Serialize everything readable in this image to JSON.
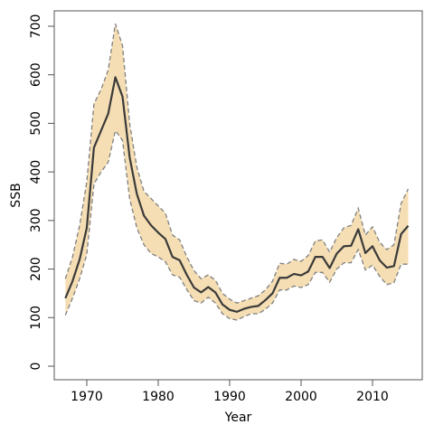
{
  "chart_data": {
    "type": "line",
    "title": "",
    "xlabel": "Year",
    "ylabel": "SSB",
    "xlim": [
      1966,
      2016
    ],
    "ylim": [
      -25,
      725
    ],
    "x_ticks": [
      1970,
      1980,
      1990,
      2000,
      2010
    ],
    "y_ticks": [
      0,
      100,
      200,
      300,
      400,
      500,
      600,
      700
    ],
    "grid": false,
    "legend": "none",
    "colors": {
      "band": "#F5DEB3",
      "line": "#3a3a3a",
      "bound": "#808080",
      "frame": "#555555"
    },
    "x": [
      1967,
      1968,
      1969,
      1970,
      1971,
      1972,
      1973,
      1974,
      1975,
      1976,
      1977,
      1978,
      1979,
      1980,
      1981,
      1982,
      1983,
      1984,
      1985,
      1986,
      1987,
      1988,
      1989,
      1990,
      1991,
      1992,
      1993,
      1994,
      1995,
      1996,
      1997,
      1998,
      1999,
      2000,
      2001,
      2002,
      2003,
      2004,
      2005,
      2006,
      2007,
      2008,
      2009,
      2010,
      2011,
      2012,
      2013,
      2014,
      2015
    ],
    "series": [
      {
        "role": "estimate",
        "values": [
          140,
          175,
          220,
          285,
          450,
          485,
          520,
          595,
          555,
          430,
          355,
          310,
          290,
          275,
          262,
          225,
          218,
          188,
          162,
          152,
          163,
          152,
          127,
          116,
          112,
          118,
          122,
          124,
          136,
          150,
          182,
          182,
          190,
          187,
          195,
          225,
          225,
          202,
          232,
          247,
          248,
          282,
          233,
          247,
          218,
          203,
          206,
          272,
          289
        ]
      },
      {
        "role": "upper",
        "values": [
          180,
          225,
          290,
          380,
          540,
          570,
          610,
          705,
          660,
          500,
          410,
          360,
          345,
          330,
          315,
          270,
          260,
          225,
          197,
          180,
          188,
          177,
          150,
          138,
          130,
          135,
          140,
          145,
          157,
          175,
          212,
          210,
          220,
          216,
          228,
          258,
          260,
          235,
          265,
          285,
          290,
          325,
          270,
          287,
          255,
          240,
          250,
          335,
          365
        ]
      },
      {
        "role": "lower",
        "values": [
          105,
          140,
          180,
          230,
          375,
          400,
          420,
          485,
          465,
          345,
          285,
          250,
          232,
          225,
          215,
          188,
          183,
          158,
          135,
          130,
          142,
          130,
          108,
          98,
          95,
          102,
          108,
          108,
          117,
          130,
          157,
          157,
          165,
          162,
          168,
          193,
          193,
          173,
          200,
          213,
          213,
          240,
          198,
          208,
          185,
          168,
          172,
          210,
          210
        ]
      }
    ]
  }
}
